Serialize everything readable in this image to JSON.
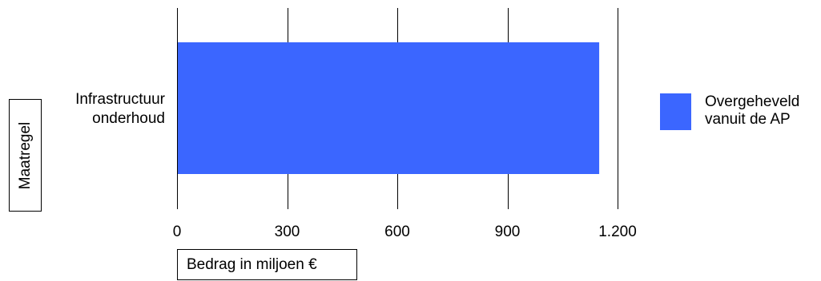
{
  "chart_data": {
    "type": "bar",
    "orientation": "horizontal",
    "categories": [
      "Infrastructuur onderhoud"
    ],
    "series": [
      {
        "name": "Overgeheveld vanuit de AP",
        "values": [
          1150
        ],
        "color": "#3b66ff"
      }
    ],
    "xlabel": "Bedrag in miljoen €",
    "ylabel": "Maatregel",
    "xlim": [
      0,
      1200
    ],
    "ticks": [
      0,
      300,
      600,
      900,
      1200
    ],
    "tick_labels": [
      "0",
      "300",
      "600",
      "900",
      "1.200"
    ],
    "grid": true,
    "legend_position": "right"
  }
}
